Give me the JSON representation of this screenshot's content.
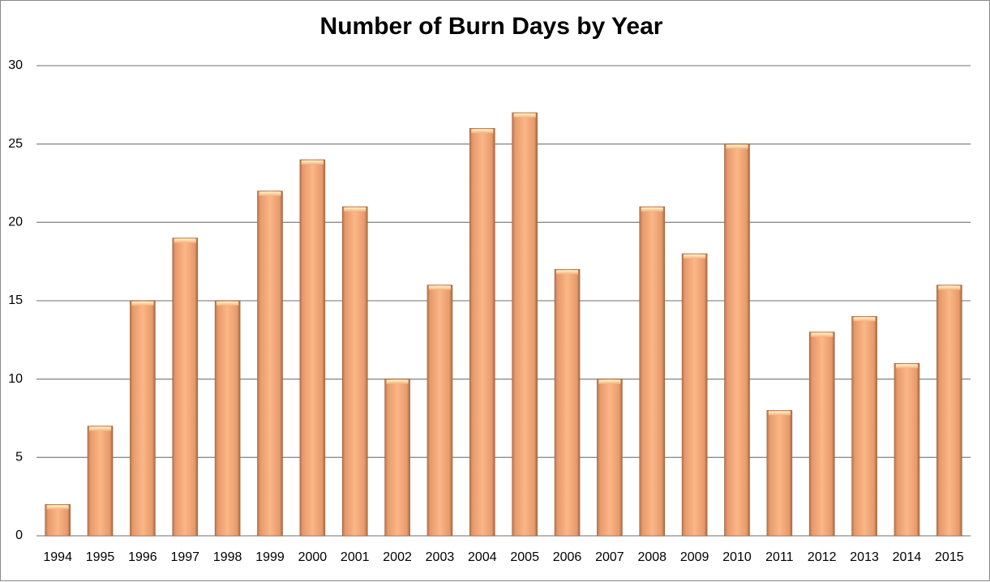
{
  "chart_data": {
    "type": "bar",
    "title": "Number of Burn Days by Year",
    "categories": [
      "1994",
      "1995",
      "1996",
      "1997",
      "1998",
      "1999",
      "2000",
      "2001",
      "2002",
      "2003",
      "2004",
      "2005",
      "2006",
      "2007",
      "2008",
      "2009",
      "2010",
      "2011",
      "2012",
      "2013",
      "2014",
      "2015"
    ],
    "values": [
      2,
      7,
      15,
      19,
      15,
      22,
      24,
      21,
      10,
      16,
      26,
      27,
      17,
      10,
      21,
      18,
      25,
      8,
      13,
      14,
      11,
      16
    ],
    "color": "#f4a97a",
    "ylim": [
      0,
      30
    ],
    "yticks": [
      0,
      5,
      10,
      15,
      20,
      25,
      30
    ],
    "grid": true
  }
}
